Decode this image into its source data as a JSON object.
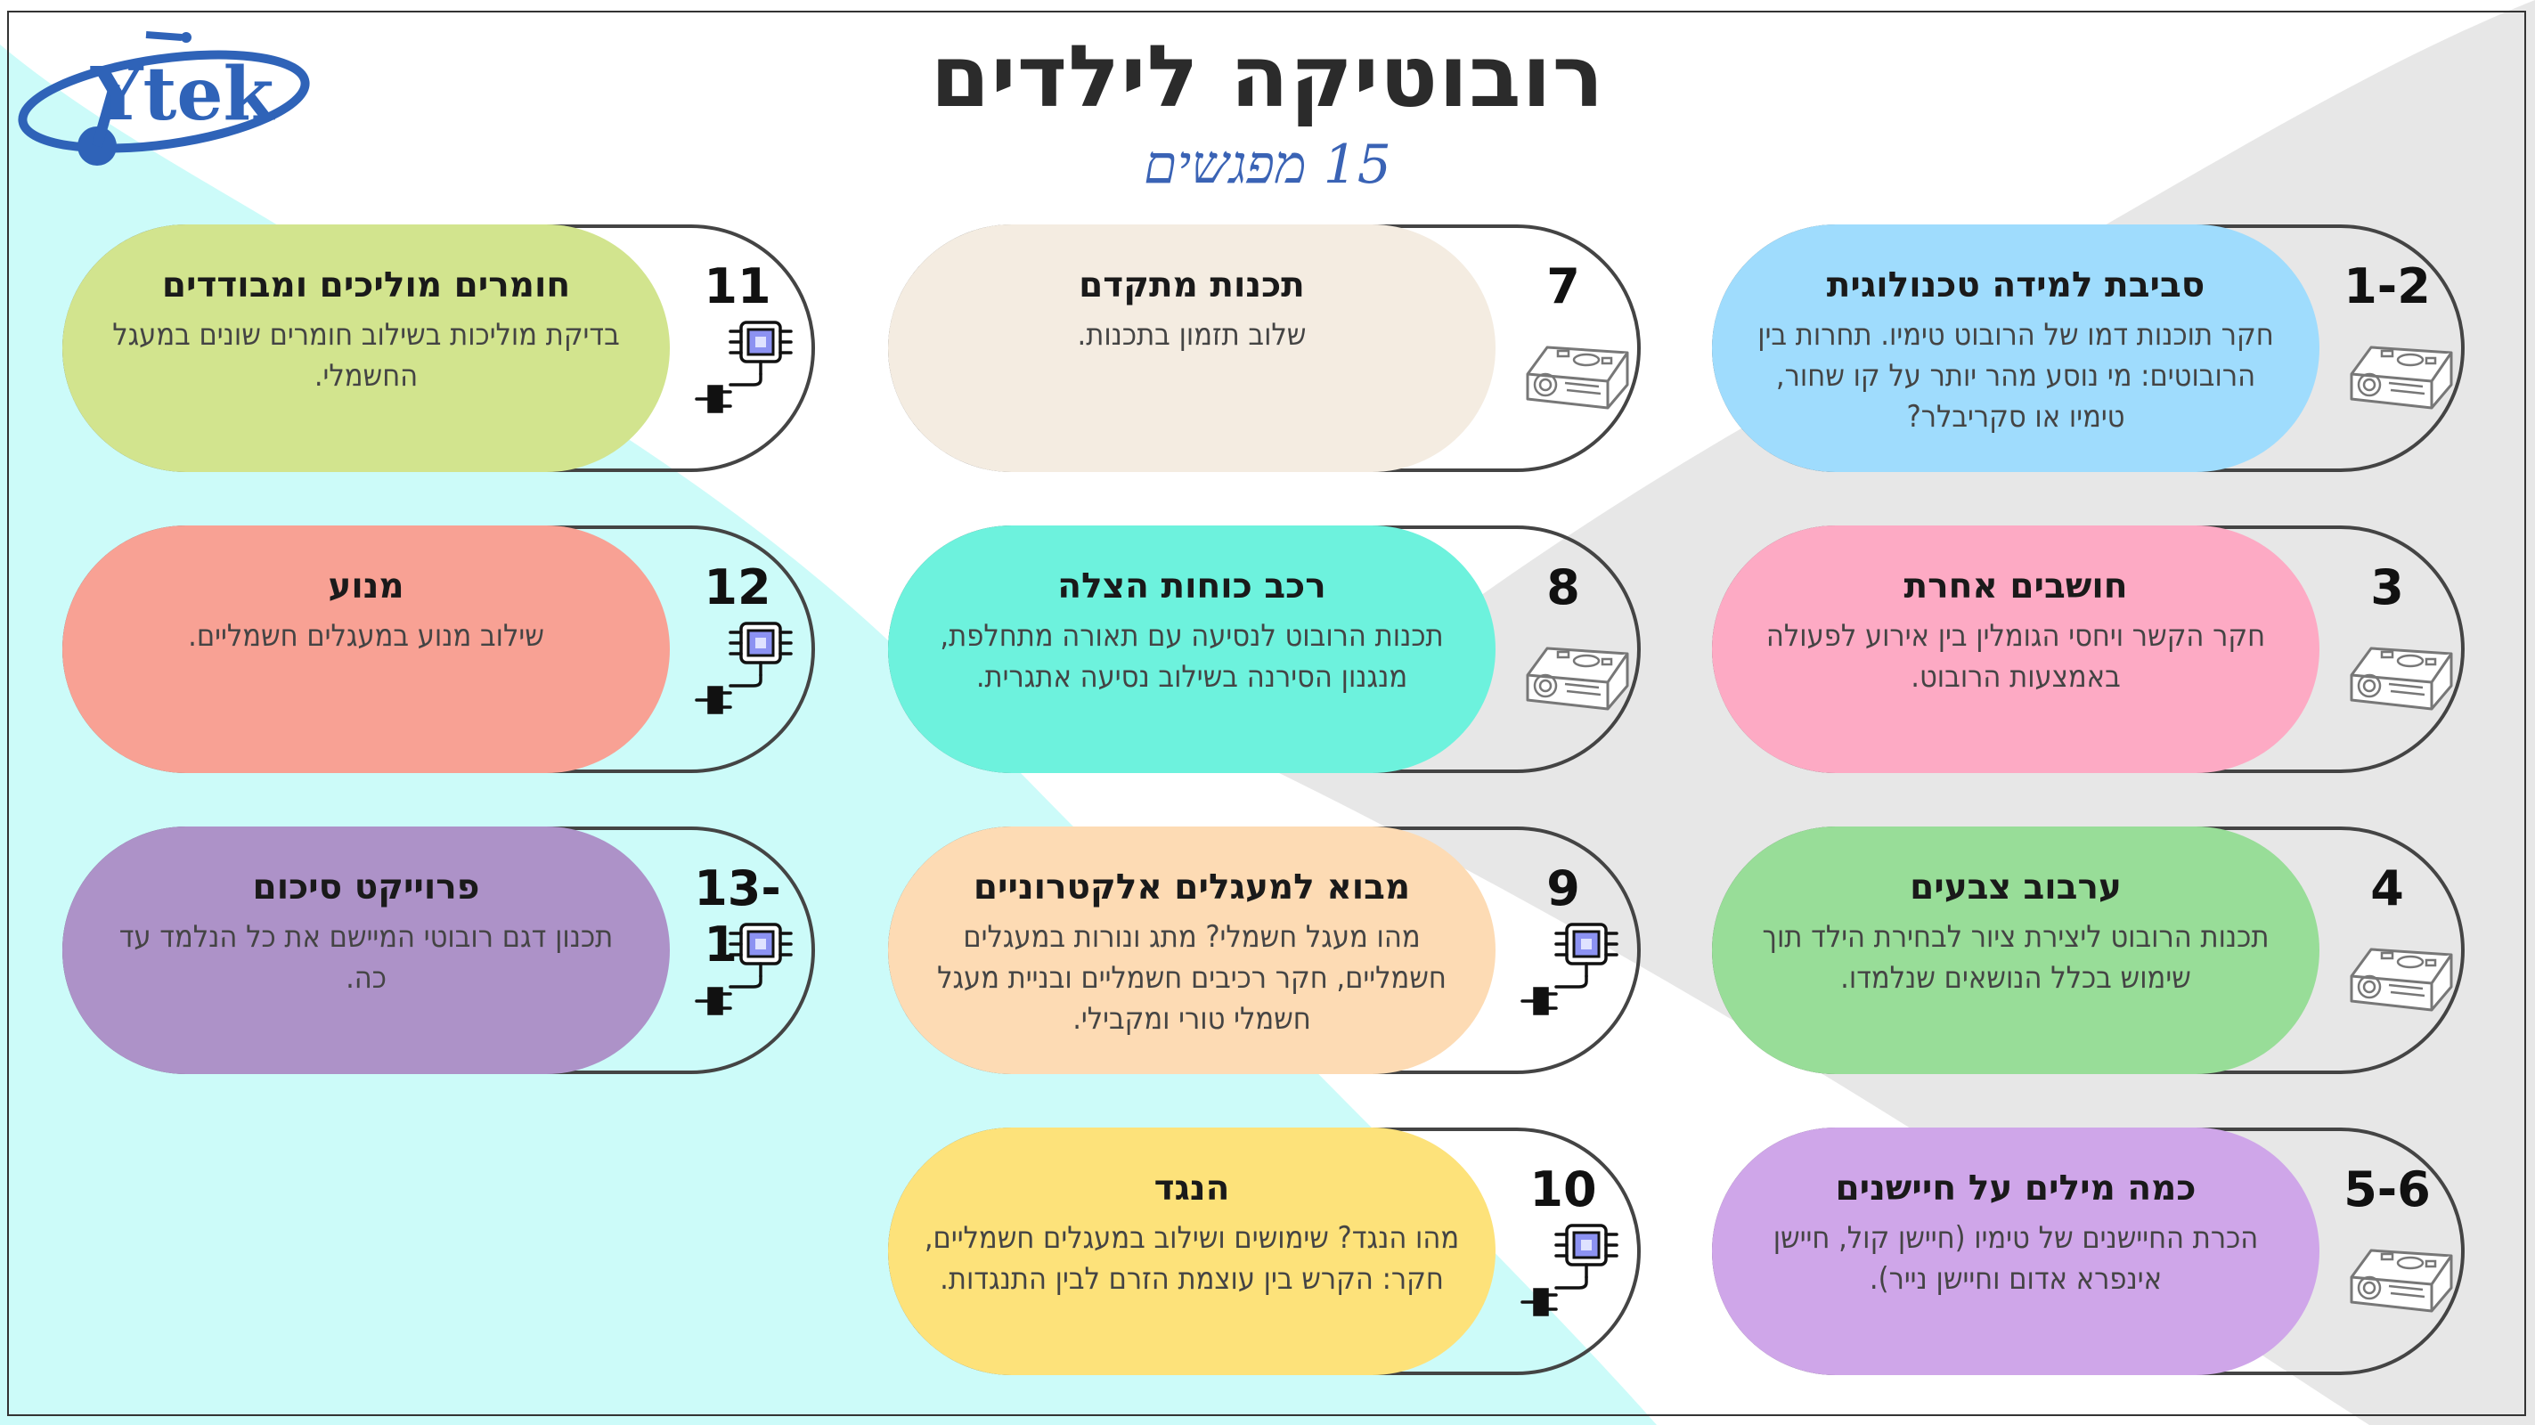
{
  "title": "רובוטיקה לילדים",
  "subtitle": "15 מפגשים",
  "logo_text": "Ytek",
  "colors": {
    "teal_bg": "#ccfbf9",
    "gray_bg": "#e7e7e7",
    "subtitle": "#3a63b5",
    "logo": "#2f63b8"
  },
  "sessions": [
    {
      "num": "1-2",
      "title": "סביבת למידה טכנולוגית",
      "desc": "חקר תוכנות דמו של הרובוט טימיו. תחרות בין הרובוטים: מי נוסע מהר יותר על קו שחור, טימיו או סקריבלר?",
      "color": "#9fdcfd",
      "icon": "robot-icon"
    },
    {
      "num": "3",
      "title": "חושבים אחרת",
      "desc": "חקר הקשר ויחסי הגומלין בין אירוע לפעולה באמצעות הרובוט.",
      "color": "#fdaac4",
      "icon": "robot-icon"
    },
    {
      "num": "4",
      "title": "ערבוב צבעים",
      "desc": "תכנות הרובוט ליצירת ציור לבחירת הילד תוך שימוש בכלל הנושאים שנלמדו.",
      "color": "#98dd98",
      "icon": "robot-icon"
    },
    {
      "num": "5-6",
      "title": "כמה מילים על חיישנים",
      "desc": "הכרת החיישנים של טימיו (חיישן קול, חיישן אינפרא אדום וחיישן נייר).",
      "color": "#cfa6e9",
      "icon": "robot-icon"
    },
    {
      "num": "7",
      "title": "תכנות מתקדם",
      "desc": "שלוב תזמון בתכנות.",
      "color": "#f4ece1",
      "icon": "robot-icon"
    },
    {
      "num": "8",
      "title": "רכב כוחות הצלה",
      "desc": "תכנות הרובוט לנסיעה עם תאורה מתחלפת, מנגנון הסירנה בשילוב נסיעה אתגרית.",
      "color": "#6df2dd",
      "icon": "robot-icon"
    },
    {
      "num": "9",
      "title": "מבוא למעגלים אלקטרוניים",
      "desc": "מהו מעגל חשמלי? מתג ונורות במעגלים חשמליים, חקר רכיבים חשמליים ובניית מעגל חשמלי טורי ומקבילי.",
      "color": "#fddbb4",
      "icon": "chip-plug-icon"
    },
    {
      "num": "10",
      "title": "הנגד",
      "desc": "מהו הנגד? שימושים ושילוב במעגלים חשמליים, חקר: הקרש בין עוצמת הזרם לבין התנגדות.",
      "color": "#fde27a",
      "icon": "chip-plug-icon"
    },
    {
      "num": "11",
      "title": "חומרים מוליכים ומבודדים",
      "desc": "בדיקת מוליכות בשילוב חומרים שונים במעגל החשמלי.",
      "color": "#d2e48e",
      "icon": "chip-plug-icon"
    },
    {
      "num": "12",
      "title": "מנוע",
      "desc": "שילוב מנוע במעגלים חשמליים.",
      "color": "#f8a194",
      "icon": "chip-plug-icon"
    },
    {
      "num": "13-15",
      "title": "פרוייקט סיכום",
      "desc": "תכנון דגם רובוטי המיישם את כל הנלמד עד כה.",
      "color": "#ad92c8",
      "icon": "chip-plug-icon"
    }
  ]
}
